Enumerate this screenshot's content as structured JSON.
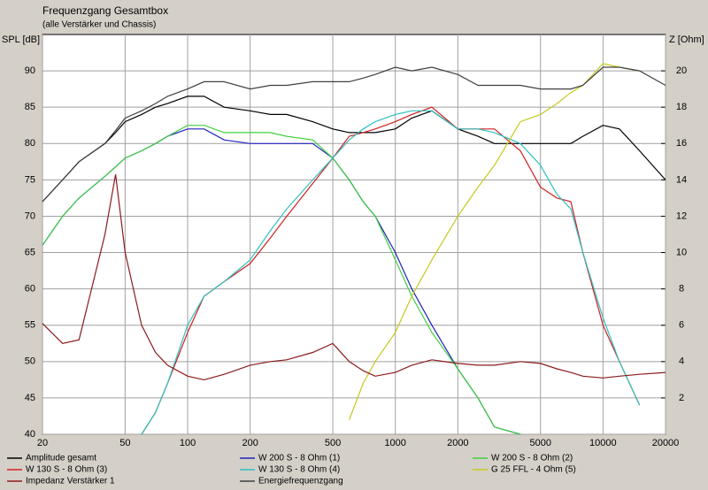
{
  "chart_data": {
    "type": "line",
    "title": "Frequenzgang Gesamtbox",
    "subtitle": "(alle Verstärker und Chassis)",
    "y_label": "SPL [dB]",
    "y2_label": "Z [Ohm]",
    "x_scale": "log",
    "grid": true,
    "x": [
      20,
      25,
      30,
      40,
      45,
      50,
      60,
      70,
      80,
      100,
      120,
      150,
      200,
      250,
      300,
      400,
      500,
      600,
      700,
      800,
      1000,
      1200,
      1500,
      2000,
      2500,
      3000,
      4000,
      5000,
      6000,
      7000,
      8000,
      10000,
      12000,
      15000,
      20000
    ],
    "xlim": [
      20,
      20000
    ],
    "xticks": [
      20,
      50,
      100,
      200,
      500,
      1000,
      2000,
      5000,
      10000,
      20000
    ],
    "ylim": [
      40,
      95
    ],
    "yticks": [
      40,
      45,
      50,
      55,
      60,
      65,
      70,
      75,
      80,
      85,
      90
    ],
    "y2lim": [
      0,
      22
    ],
    "y2ticks": [
      2,
      4,
      6,
      8,
      10,
      12,
      14,
      16,
      18,
      20
    ],
    "series": [
      {
        "name": "Amplitude gesamt",
        "color": "#000000",
        "values": [
          72,
          75,
          77.5,
          80,
          81.5,
          83,
          84,
          85,
          85.5,
          86.5,
          86.5,
          85,
          84.5,
          84,
          84,
          83,
          82,
          81.5,
          81.5,
          81.5,
          82,
          83.5,
          84.5,
          82,
          81,
          80,
          80,
          80,
          80,
          80,
          81,
          82.5,
          82,
          79,
          75
        ]
      },
      {
        "name": "W 200 S - 8 Ohm (1)",
        "color": "#2020c0",
        "values": [
          66,
          70,
          72.5,
          75.5,
          76.8,
          78,
          79,
          80,
          81,
          82,
          82,
          80.5,
          80,
          80,
          80,
          80,
          78,
          75,
          72,
          70,
          65,
          60,
          55,
          49,
          45,
          41,
          40,
          null,
          null,
          null,
          null,
          null,
          null,
          null,
          null
        ]
      },
      {
        "name": "W 200 S - 8 Ohm (2)",
        "color": "#40d040",
        "values": [
          66,
          70,
          72.5,
          75.5,
          76.8,
          78,
          79,
          80,
          81,
          82.5,
          82.5,
          81.5,
          81.5,
          81.5,
          81,
          80.5,
          78,
          75,
          72,
          70,
          64,
          59,
          54,
          49,
          45,
          41,
          40,
          null,
          null,
          null,
          null,
          null,
          null,
          null,
          null
        ]
      },
      {
        "name": "W 130 S - 8 Ohm (3)",
        "color": "#d02020",
        "values": [
          null,
          null,
          null,
          null,
          null,
          null,
          40,
          43,
          47,
          54,
          59,
          61,
          63.5,
          67,
          70,
          74.5,
          78,
          81,
          81.5,
          82,
          83,
          84,
          85,
          82,
          82,
          82,
          79,
          74,
          72.5,
          72,
          65,
          55,
          50,
          44,
          null
        ]
      },
      {
        "name": "W 130 S - 8 Ohm (4)",
        "color": "#30c0c0",
        "values": [
          null,
          null,
          null,
          null,
          null,
          null,
          40,
          43,
          47,
          55,
          59,
          61,
          64,
          68,
          71,
          75,
          78,
          80.5,
          82,
          83,
          84,
          84.5,
          84.5,
          82,
          82,
          81.5,
          80,
          77,
          73,
          71,
          65,
          56,
          50,
          44,
          null
        ]
      },
      {
        "name": "G 25 FFL - 4 Ohm (5)",
        "color": "#c8c820",
        "values": [
          null,
          null,
          null,
          null,
          null,
          null,
          null,
          null,
          null,
          null,
          null,
          null,
          null,
          null,
          null,
          null,
          null,
          42,
          47,
          50,
          54,
          59,
          64,
          70,
          74,
          77,
          83,
          84,
          85.5,
          87,
          88,
          91,
          90.5,
          90,
          null
        ]
      },
      {
        "name": "Impedanz Verstärker 1",
        "color": "#8b1a1a",
        "axis": "y2",
        "values": [
          6.1,
          5.0,
          5.2,
          11,
          14.3,
          10,
          6,
          4.5,
          3.8,
          3.2,
          3.0,
          3.3,
          3.8,
          4.0,
          4.1,
          4.5,
          5.0,
          4.0,
          3.5,
          3.2,
          3.4,
          3.8,
          4.1,
          3.9,
          3.8,
          3.8,
          4.0,
          3.9,
          3.6,
          3.4,
          3.2,
          3.1,
          3.2,
          3.3,
          3.4
        ]
      },
      {
        "name": "Energiefrequenzgang",
        "color": "#404040",
        "values": [
          72,
          75,
          77.5,
          80,
          81.8,
          83.5,
          84.5,
          85.5,
          86.5,
          87.5,
          88.5,
          88.5,
          87.5,
          88,
          88,
          88.5,
          88.5,
          88.5,
          89,
          89.5,
          90.5,
          90,
          90.5,
          89.5,
          88,
          88,
          88,
          87.5,
          87.5,
          87.5,
          88,
          90.5,
          90.5,
          90,
          88
        ]
      }
    ]
  }
}
